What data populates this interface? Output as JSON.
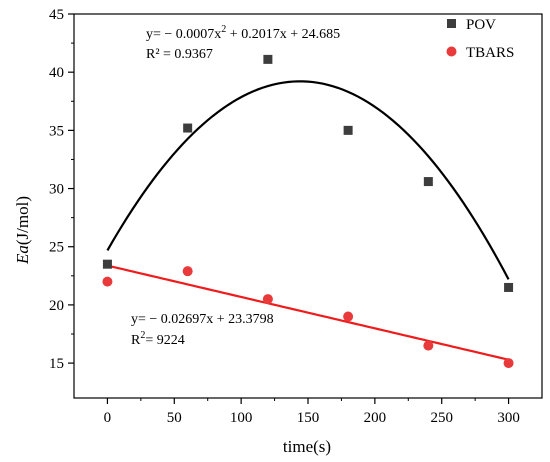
{
  "chart_data": {
    "type": "scatter",
    "xlabel": "time(s)",
    "ylabel_italic": "Ea",
    "ylabel_rest": "(J/mol)",
    "xlim": [
      -25,
      325
    ],
    "ylim": [
      12,
      45
    ],
    "x_ticks": [
      0,
      50,
      100,
      150,
      200,
      250,
      300
    ],
    "y_ticks": [
      15,
      20,
      25,
      30,
      35,
      40,
      45
    ],
    "grid": false,
    "legend_position": "top-right",
    "series": [
      {
        "name": "POV",
        "marker": "square",
        "color": "#3d3d3d",
        "x": [
          0,
          60,
          120,
          180,
          240,
          300
        ],
        "y": [
          23.5,
          35.2,
          41.1,
          35.0,
          30.6,
          21.5
        ],
        "fit": {
          "type": "quadratic",
          "a": -0.0007,
          "b": 0.2017,
          "c": 24.685,
          "color": "#000000"
        }
      },
      {
        "name": "TBARS",
        "marker": "circle",
        "color": "#e83a3a",
        "x": [
          0,
          60,
          120,
          180,
          240,
          300
        ],
        "y": [
          22.0,
          22.9,
          20.5,
          19.0,
          16.5,
          15.0
        ],
        "fit": {
          "type": "linear",
          "a": 0,
          "b": -0.02697,
          "c": 23.3798,
          "color": "#ee1c1c"
        }
      }
    ],
    "annotations": {
      "pov_eq_pre": "y= − 0.0007x",
      "pov_eq_sup": "2",
      "pov_eq_post": " + 0.2017x + 24.685",
      "pov_r2": "R² = 0.9367",
      "tbars_eq": "y= − 0.02697x + 23.3798",
      "tbars_r2_pre": "R",
      "tbars_r2_sup": "2",
      "tbars_r2_post": "= 9224"
    }
  }
}
